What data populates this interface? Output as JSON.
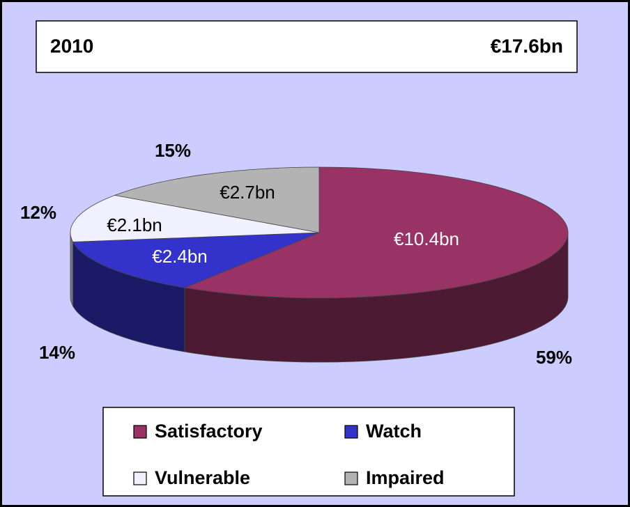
{
  "chart_data": {
    "type": "pie",
    "title": "2010",
    "total": "€17.6bn",
    "categories": [
      "Satisfactory",
      "Watch",
      "Vulnerable",
      "Impaired"
    ],
    "values": [
      10.4,
      2.4,
      2.1,
      2.7
    ],
    "value_labels": [
      "€10.4bn",
      "€2.4bn",
      "€2.1bn",
      "€2.7bn"
    ],
    "percentages": [
      59,
      14,
      12,
      15
    ],
    "percentage_labels": [
      "59%",
      "14%",
      "12%",
      "15%"
    ],
    "colors": [
      "#993366",
      "#3333cc",
      "#f0f0ff",
      "#b3b3b3"
    ],
    "legend": "bottom"
  }
}
